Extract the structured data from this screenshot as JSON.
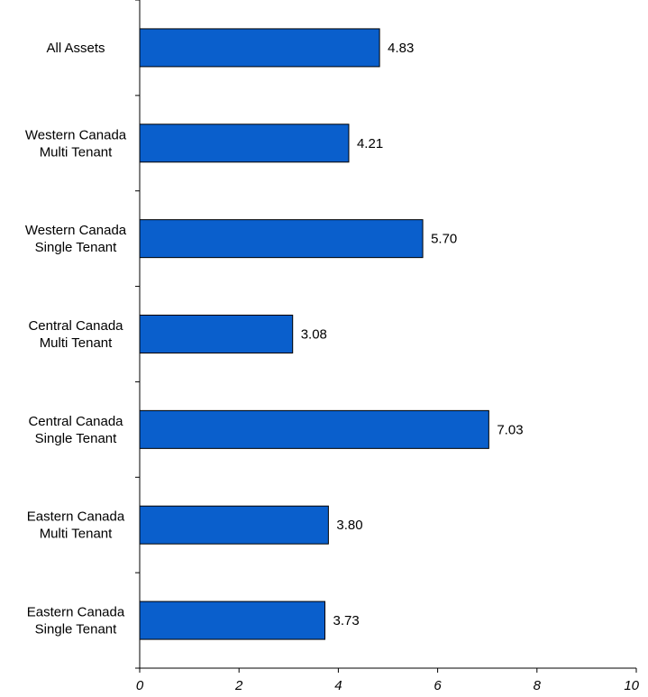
{
  "chart_data": {
    "type": "bar",
    "orientation": "horizontal",
    "categories": [
      [
        "All Assets"
      ],
      [
        "Western Canada",
        "Multi Tenant"
      ],
      [
        "Western Canada",
        "Single Tenant"
      ],
      [
        "Central Canada",
        "Multi Tenant"
      ],
      [
        "Central Canada",
        "Single Tenant"
      ],
      [
        "Eastern Canada",
        "Multi Tenant"
      ],
      [
        "Eastern Canada",
        "Single Tenant"
      ]
    ],
    "values": [
      4.83,
      4.21,
      5.7,
      3.08,
      7.03,
      3.8,
      3.73
    ],
    "value_labels": [
      "4.83",
      "4.21",
      "5.70",
      "3.08",
      "7.03",
      "3.80",
      "3.73"
    ],
    "xlim": [
      0,
      10
    ],
    "xticks": [
      0,
      2,
      4,
      6,
      8,
      10
    ],
    "title": "",
    "xlabel": "",
    "ylabel": "",
    "grid": false,
    "colors": {
      "bar_fill": "#0a5fcc",
      "bar_stroke": "#000000",
      "axis": "#000000"
    }
  }
}
